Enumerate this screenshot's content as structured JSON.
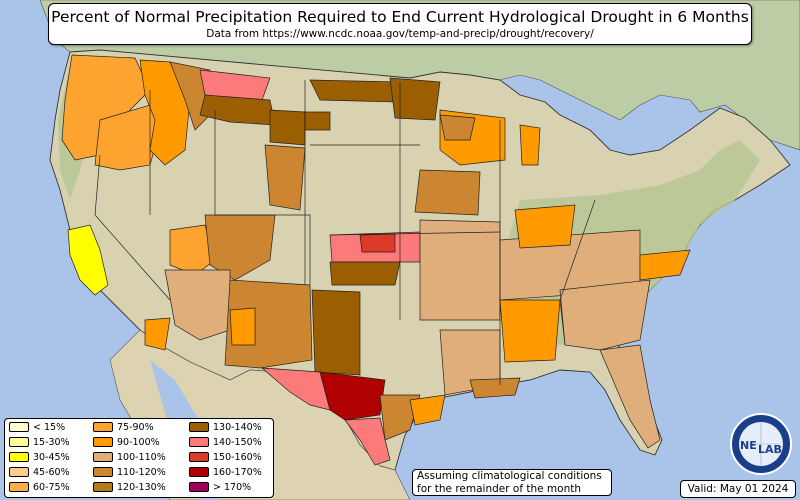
{
  "title": "Percent of Normal Precipitation Required to End Current Hydrological Drought in 6 Months",
  "subtitle": "Data from https://www.ncdc.noaa.gov/temp-and-precip/drought/recovery/",
  "legend": [
    {
      "label": "< 15%",
      "color": "#ffffd0"
    },
    {
      "label": "15-30%",
      "color": "#ffff99"
    },
    {
      "label": "30-45%",
      "color": "#ffff00"
    },
    {
      "label": "45-60%",
      "color": "#fccb8e"
    },
    {
      "label": "60-75%",
      "color": "#fcad4a"
    },
    {
      "label": "75-90%",
      "color": "#fda330"
    },
    {
      "label": "90-100%",
      "color": "#ff9a00"
    },
    {
      "label": "100-110%",
      "color": "#e0ae7a"
    },
    {
      "label": "110-120%",
      "color": "#cc8530"
    },
    {
      "label": "120-130%",
      "color": "#b57a1a"
    },
    {
      "label": "130-140%",
      "color": "#9b5e00"
    },
    {
      "label": "140-150%",
      "color": "#fc7a7a"
    },
    {
      "label": "150-160%",
      "color": "#dd3a2a"
    },
    {
      "label": "160-170%",
      "color": "#b00000"
    },
    {
      "label": "> 170%",
      "color": "#a0005a"
    }
  ],
  "note": {
    "line1": "Assuming climatological conditions",
    "line2": "for the remainder of the month"
  },
  "valid": "Valid: May 01 2024",
  "logo": {
    "text_left": "NE",
    "text_right": "LAB"
  },
  "colors": {
    "water": "#a9c4e8",
    "land": "#d9d4b4",
    "forest": "#a8bf8a",
    "canada": "#b8c9a0",
    "mexico": "#ddd3b0"
  }
}
